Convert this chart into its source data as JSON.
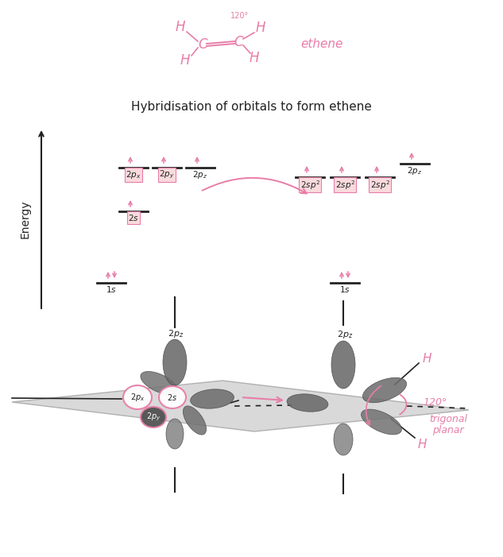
{
  "bg_color": "#ffffff",
  "pink": "#e87da8",
  "dark": "#222222",
  "title": "Hybridisation of orbitals to form ethene",
  "energy_label": "Energy",
  "ethene_label": "ethene",
  "orbital_box_color": "#fadadd"
}
